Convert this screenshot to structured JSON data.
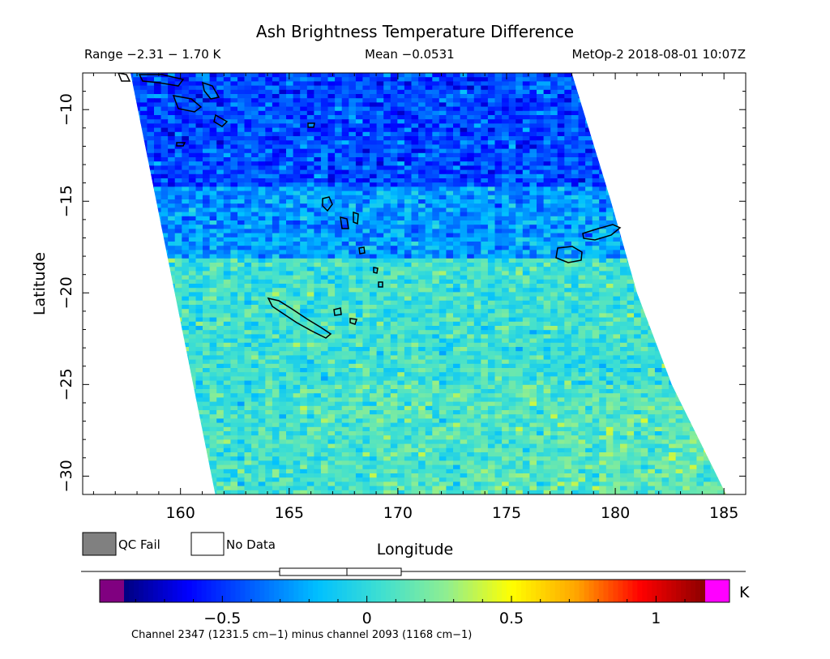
{
  "chart_data": {
    "type": "heatmap",
    "title": "Ash Brightness Temperature Difference",
    "info": {
      "range": "Range −2.31 − 1.70 K",
      "mean": "Mean −0.0531",
      "satellite": "MetOp-2 2018-08-01 10:07Z"
    },
    "xlabel": "Longitude",
    "ylabel": "Latitude",
    "xlim": [
      155.5,
      186
    ],
    "ylim": [
      -31,
      -8
    ],
    "x_ticks": [
      160,
      165,
      170,
      175,
      180,
      185
    ],
    "x_tick_labels": [
      "160",
      "165",
      "170",
      "175",
      "180",
      "185"
    ],
    "y_ticks": [
      -10,
      -15,
      -20,
      -25,
      -30
    ],
    "y_tick_labels": [
      "−10",
      "−15",
      "−20",
      "−25",
      "−30"
    ],
    "swath": {
      "top_lat": -8,
      "bottom_lat": -31,
      "left_edge_lon": [
        [
          -8,
          157.7
        ],
        [
          -31,
          161.6
        ]
      ],
      "right_edge_lon": [
        [
          -8,
          178.0
        ],
        [
          -15,
          179.8
        ],
        [
          -20,
          181.0
        ],
        [
          -25,
          182.6
        ],
        [
          -31,
          185.1
        ]
      ]
    },
    "legend": {
      "qc_fail": "QC Fail",
      "no_data": "No Data",
      "qc_fail_color": "#808080"
    },
    "colorbar": {
      "min": -0.84,
      "max": 1.17,
      "ticks": [
        -0.5,
        0,
        0.5,
        1
      ],
      "tick_labels": [
        "−0.5",
        "0",
        "0.5",
        "1"
      ],
      "unit": "K",
      "underflow_color": "#800080",
      "overflow_color": "#ff00ff",
      "colors": [
        "#000080",
        "#0000ff",
        "#0060ff",
        "#00c0ff",
        "#40e0d0",
        "#90ee90",
        "#ffff00",
        "#ffa500",
        "#ff0000",
        "#8b0000"
      ]
    },
    "footnote": "Channel 2347 (1231.5 cm−1) minus channel 2093 (1168 cm−1)",
    "field_description_for_render": [
      {
        "lat_from": -8,
        "lat_to": -14,
        "typical_value": -0.45
      },
      {
        "lat_from": -14,
        "lat_to": -18,
        "typical_value": -0.25
      },
      {
        "lat_from": -18,
        "lat_to": -31,
        "typical_value": 0.05
      }
    ]
  }
}
